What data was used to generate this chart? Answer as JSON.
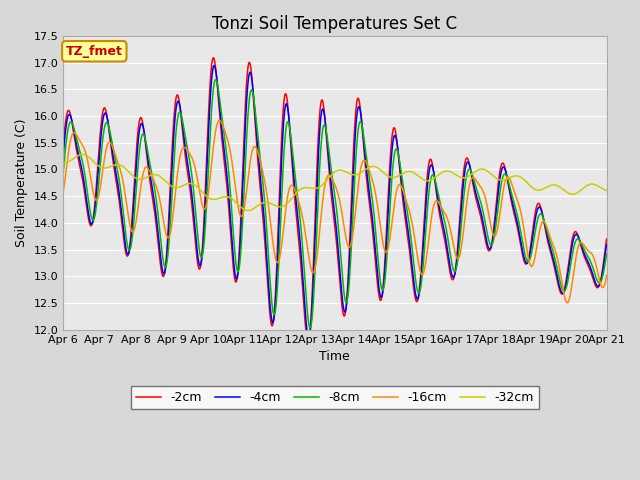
{
  "title": "Tonzi Soil Temperatures Set C",
  "xlabel": "Time",
  "ylabel": "Soil Temperature (C)",
  "ylim": [
    12.0,
    17.5
  ],
  "legend_label": "TZ_fmet",
  "legend_entries": [
    "-2cm",
    "-4cm",
    "-8cm",
    "-16cm",
    "-32cm"
  ],
  "line_colors": [
    "#ff0000",
    "#0000ff",
    "#00bb00",
    "#ff8800",
    "#cccc00"
  ],
  "xtick_labels": [
    "Apr 6",
    "Apr 7",
    "Apr 8",
    "Apr 9",
    "Apr 10",
    "Apr 11",
    "Apr 12",
    "Apr 13",
    "Apr 14",
    "Apr 15",
    "Apr 16",
    "Apr 17",
    "Apr 18",
    "Apr 19",
    "Apr 20",
    "Apr 21"
  ],
  "background_color": "#d8d8d8",
  "plot_bg_color": "#e8e8e8",
  "title_fontsize": 12,
  "axis_fontsize": 9,
  "tick_fontsize": 8
}
